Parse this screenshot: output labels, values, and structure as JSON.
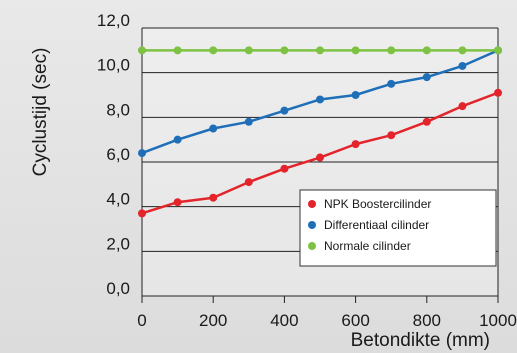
{
  "chart_data": {
    "type": "line",
    "xlabel": "Betondikte (mm)",
    "ylabel": "Cyclustijd (sec)",
    "x": [
      0,
      100,
      200,
      300,
      400,
      500,
      600,
      700,
      800,
      900,
      1000
    ],
    "xlim": [
      0,
      1000
    ],
    "ylim": [
      0,
      12
    ],
    "x_ticks": [
      0,
      200,
      400,
      600,
      800,
      1000
    ],
    "x_tick_labels": [
      "0",
      "200",
      "400",
      "600",
      "800",
      "1000"
    ],
    "y_ticks": [
      0,
      2,
      4,
      6,
      8,
      10,
      12
    ],
    "y_tick_labels": [
      "0,0",
      "2,0",
      "4,0",
      "6,0",
      "8,0",
      "10,0",
      "12,0"
    ],
    "grid": "horizontal",
    "legend_position": "bottom-right",
    "series": [
      {
        "name": "NPK Boostercilinder",
        "color": "#e3242b",
        "values": [
          3.7,
          4.2,
          4.4,
          5.1,
          5.7,
          6.2,
          6.8,
          7.2,
          7.8,
          8.5,
          9.1
        ]
      },
      {
        "name": "Differentiaal cilinder",
        "color": "#1f6fb8",
        "values": [
          6.4,
          7.0,
          7.5,
          7.8,
          8.3,
          8.8,
          9.0,
          9.5,
          9.8,
          10.3,
          11.0
        ]
      },
      {
        "name": "Normale cilinder",
        "color": "#7dc242",
        "values": [
          11.0,
          11.0,
          11.0,
          11.0,
          11.0,
          11.0,
          11.0,
          11.0,
          11.0,
          11.0,
          11.0
        ]
      }
    ]
  }
}
